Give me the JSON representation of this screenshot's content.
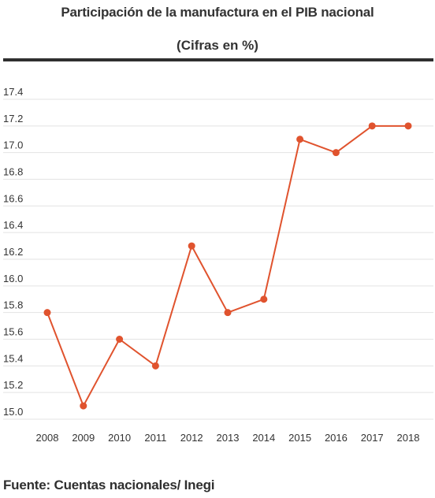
{
  "header": {
    "title": "Participación de la manufactura en el PIB nacional",
    "subtitle": "(Cifras en %)"
  },
  "footer": {
    "source": "Fuente: Cuentas nacionales/ Inegi"
  },
  "colors": {
    "series": "#e0532e",
    "grid": "#e3e3e3",
    "text": "#333333",
    "rule": "#2f2f2f"
  },
  "chart_data": {
    "type": "line",
    "title": "Participación de la manufactura en el PIB nacional",
    "subtitle": "(Cifras en %)",
    "xlabel": "",
    "ylabel": "",
    "x": [
      "2008",
      "2009",
      "2010",
      "2011",
      "2012",
      "2013",
      "2014",
      "2015",
      "2016",
      "2017",
      "2018"
    ],
    "series": [
      {
        "values": [
          15.8,
          15.1,
          15.6,
          15.4,
          16.3,
          15.8,
          15.9,
          17.1,
          17.0,
          17.2,
          17.2
        ]
      }
    ],
    "y_ticks": [
      "15.0",
      "15.2",
      "15.4",
      "15.6",
      "15.8",
      "16.0",
      "16.2",
      "16.4",
      "16.6",
      "16.8",
      "17.0",
      "17.2",
      "17.4"
    ],
    "ylim": [
      15.0,
      17.4
    ],
    "grid": true,
    "markers": true
  }
}
